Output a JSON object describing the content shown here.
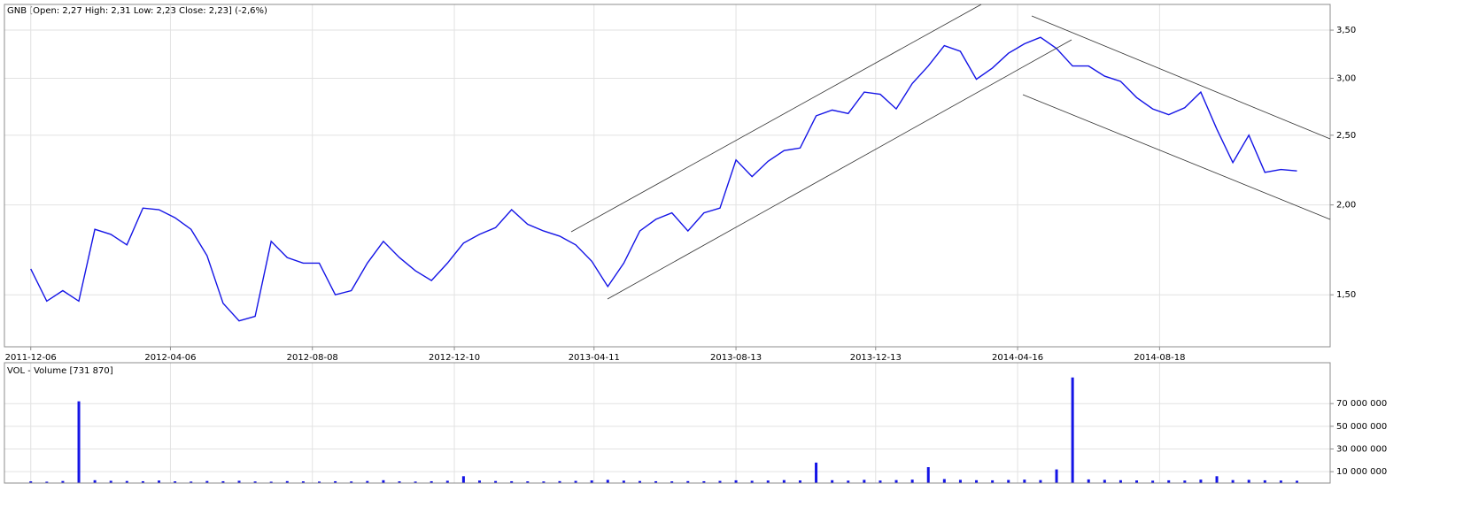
{
  "chart_data": [
    {
      "type": "line",
      "title": "GNB [Open: 2,27 High: 2,31 Low: 2,23 Close: 2,23] (-2,6%)",
      "x": [
        "2011-12-06",
        "2011-12-20",
        "2012-01-03",
        "2012-01-17",
        "2012-01-31",
        "2012-02-14",
        "2012-02-28",
        "2012-03-13",
        "2012-03-27",
        "2012-04-10",
        "2012-04-24",
        "2012-05-08",
        "2012-05-22",
        "2012-06-05",
        "2012-06-19",
        "2012-07-03",
        "2012-07-17",
        "2012-07-31",
        "2012-08-14",
        "2012-08-28",
        "2012-09-11",
        "2012-09-25",
        "2012-10-09",
        "2012-10-23",
        "2012-11-06",
        "2012-11-20",
        "2012-12-04",
        "2012-12-18",
        "2013-01-01",
        "2013-01-15",
        "2013-01-29",
        "2013-02-12",
        "2013-02-26",
        "2013-03-12",
        "2013-03-26",
        "2013-04-09",
        "2013-04-23",
        "2013-05-07",
        "2013-05-21",
        "2013-06-04",
        "2013-06-18",
        "2013-07-02",
        "2013-07-16",
        "2013-07-30",
        "2013-08-13",
        "2013-08-27",
        "2013-09-10",
        "2013-09-24",
        "2013-10-08",
        "2013-10-22",
        "2013-11-05",
        "2013-11-19",
        "2013-12-03",
        "2013-12-17",
        "2013-12-31",
        "2014-01-14",
        "2014-01-28",
        "2014-02-11",
        "2014-02-25",
        "2014-03-11",
        "2014-03-25",
        "2014-04-08",
        "2014-04-22",
        "2014-05-06",
        "2014-05-20",
        "2014-06-03",
        "2014-06-17",
        "2014-07-01",
        "2014-07-15",
        "2014-07-29",
        "2014-08-12",
        "2014-08-26",
        "2014-09-09",
        "2014-09-23",
        "2014-10-07",
        "2014-10-21",
        "2014-11-04",
        "2014-11-18",
        "2014-12-02",
        "2014-12-16"
      ],
      "series": [
        {
          "name": "GNB",
          "color": "#1414e6",
          "values": [
            1.63,
            1.47,
            1.52,
            1.47,
            1.85,
            1.82,
            1.76,
            1.98,
            1.97,
            1.92,
            1.85,
            1.7,
            1.46,
            1.38,
            1.4,
            1.78,
            1.69,
            1.66,
            1.66,
            1.5,
            1.52,
            1.66,
            1.78,
            1.69,
            1.62,
            1.57,
            1.66,
            1.77,
            1.82,
            1.86,
            1.97,
            1.88,
            1.84,
            1.81,
            1.76,
            1.67,
            1.54,
            1.66,
            1.84,
            1.91,
            1.95,
            1.84,
            1.95,
            1.98,
            2.31,
            2.19,
            2.3,
            2.38,
            2.4,
            2.66,
            2.71,
            2.68,
            2.87,
            2.85,
            2.72,
            2.95,
            3.12,
            3.33,
            3.27,
            2.99,
            3.1,
            3.25,
            3.35,
            3.42,
            3.3,
            3.12,
            3.12,
            3.02,
            2.97,
            2.82,
            2.72,
            2.67,
            2.73,
            2.87,
            2.55,
            2.29,
            2.5,
            2.22,
            2.24,
            2.23
          ]
        }
      ],
      "xlim": [
        "2011-11-13",
        "2015-01-14"
      ],
      "xticks": [
        "2011-12-06",
        "2012-04-06",
        "2012-08-08",
        "2012-12-10",
        "2013-04-11",
        "2013-08-13",
        "2013-12-13",
        "2014-04-16",
        "2014-08-18"
      ],
      "ylim": [
        1.27,
        3.8
      ],
      "yticks": [
        {
          "value": 1.5,
          "label": "1,50"
        },
        {
          "value": 2,
          "label": "2,00"
        },
        {
          "value": 2.5,
          "label": "2,50"
        },
        {
          "value": 3,
          "label": "3,00"
        },
        {
          "value": 3.5,
          "label": "3,50"
        }
      ],
      "log_scale": true,
      "grid": true
    },
    {
      "type": "bar",
      "title": "VOL - Volume [731 870]",
      "x": [
        "2011-12-06",
        "2011-12-20",
        "2012-01-03",
        "2012-01-17",
        "2012-01-31",
        "2012-02-14",
        "2012-02-28",
        "2012-03-13",
        "2012-03-27",
        "2012-04-10",
        "2012-04-24",
        "2012-05-08",
        "2012-05-22",
        "2012-06-05",
        "2012-06-19",
        "2012-07-03",
        "2012-07-17",
        "2012-07-31",
        "2012-08-14",
        "2012-08-28",
        "2012-09-11",
        "2012-09-25",
        "2012-10-09",
        "2012-10-23",
        "2012-11-06",
        "2012-11-20",
        "2012-12-04",
        "2012-12-18",
        "2013-01-01",
        "2013-01-15",
        "2013-01-29",
        "2013-02-12",
        "2013-02-26",
        "2013-03-12",
        "2013-03-26",
        "2013-04-09",
        "2013-04-23",
        "2013-05-07",
        "2013-05-21",
        "2013-06-04",
        "2013-06-18",
        "2013-07-02",
        "2013-07-16",
        "2013-07-30",
        "2013-08-13",
        "2013-08-27",
        "2013-09-10",
        "2013-09-24",
        "2013-10-08",
        "2013-10-22",
        "2013-11-05",
        "2013-11-19",
        "2013-12-03",
        "2013-12-17",
        "2013-12-31",
        "2014-01-14",
        "2014-01-28",
        "2014-02-11",
        "2014-02-25",
        "2014-03-11",
        "2014-03-25",
        "2014-04-08",
        "2014-04-22",
        "2014-05-06",
        "2014-05-20",
        "2014-06-03",
        "2014-06-17",
        "2014-07-01",
        "2014-07-15",
        "2014-07-29",
        "2014-08-12",
        "2014-08-26",
        "2014-09-09",
        "2014-09-23",
        "2014-10-07",
        "2014-10-21",
        "2014-11-04",
        "2014-11-18",
        "2014-12-02",
        "2014-12-16"
      ],
      "color": "#1414e6",
      "values": [
        1500000,
        1200000,
        1800000,
        72000000,
        2500000,
        2000000,
        1800000,
        1600000,
        2200000,
        1500000,
        1300000,
        1800000,
        1600000,
        2000000,
        1400000,
        1200000,
        1700000,
        1500000,
        1300000,
        1600000,
        1400000,
        1800000,
        2500000,
        1500000,
        1300000,
        1600000,
        2000000,
        6000000,
        2200000,
        1800000,
        1600000,
        1500000,
        1400000,
        1700000,
        1900000,
        2300000,
        2800000,
        2100000,
        1800000,
        1600000,
        1500000,
        1700000,
        1600000,
        1900000,
        2400000,
        2000000,
        2200000,
        2600000,
        2300000,
        18000000,
        2500000,
        2100000,
        2800000,
        2200000,
        2600000,
        3000000,
        14000000,
        3500000,
        2800000,
        2500000,
        2400000,
        2700000,
        3000000,
        2600000,
        12000000,
        93000000,
        3200000,
        2800000,
        2500000,
        2300000,
        2100000,
        2400000,
        2200000,
        3000000,
        6000000,
        2600000,
        2800000,
        2400000,
        2200000,
        2000000
      ],
      "xlim": [
        "2011-11-13",
        "2015-01-14"
      ],
      "ylim": [
        0,
        106000000
      ],
      "yticks": [
        {
          "value": 10000000,
          "label": "10 000 000"
        },
        {
          "value": 30000000,
          "label": "30 000 000"
        },
        {
          "value": 50000000,
          "label": "50 000 000"
        },
        {
          "value": 70000000,
          "label": "70 000 000"
        }
      ],
      "grid": true
    }
  ]
}
